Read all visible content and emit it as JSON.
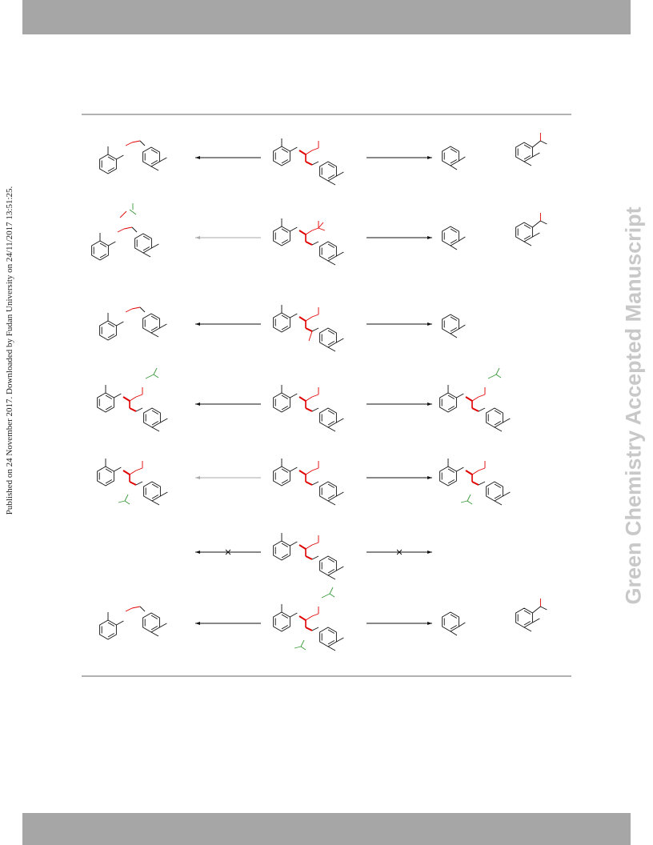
{
  "sidebar_left": {
    "text": "Published on 24 November 2017. Downloaded by Fudan University on 24/11/2017 13:51:25."
  },
  "watermark": {
    "text": "Green Chemistry Accepted Manuscript"
  }
}
